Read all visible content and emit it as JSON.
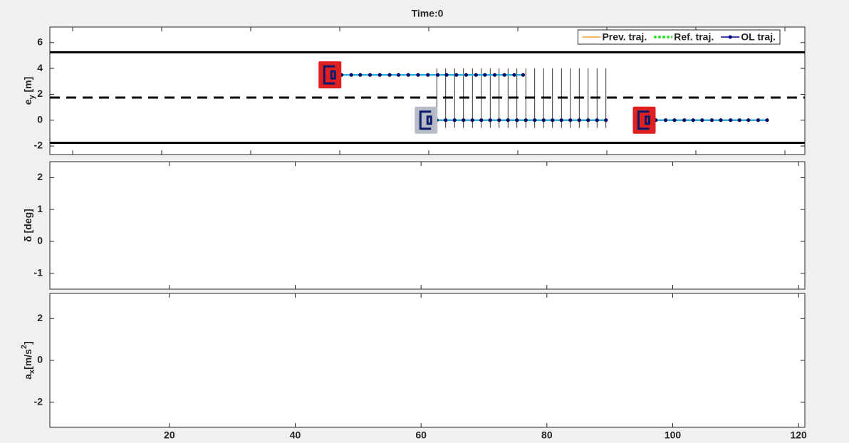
{
  "title": "Time:0",
  "chart_data": [
    {
      "type": "line",
      "ylabel": [
        {
          "text": "e"
        },
        {
          "text": "y",
          "sub": true
        },
        {
          "text": " [m]"
        }
      ],
      "xlim": [
        7.44,
        92.24
      ],
      "xticks": [
        10,
        20,
        30,
        40,
        50,
        60,
        70,
        80,
        90
      ],
      "ylim": [
        -2.66,
        7.2
      ],
      "yticks": [
        -2,
        0,
        2,
        4,
        6
      ],
      "lanes": {
        "solid": [
          5.25,
          -1.75
        ],
        "dashed": [
          1.75
        ]
      },
      "bounds": {
        "x": [
          50.9,
          51.9,
          52.9,
          53.9,
          54.9,
          55.9,
          56.9,
          57.9,
          58.9,
          59.9,
          60.9,
          61.9,
          62.9,
          63.9,
          64.9,
          65.9,
          66.9,
          67.9,
          68.9,
          69.9
        ],
        "ymin": -0.6,
        "ymax": 4.0
      },
      "series": [
        {
          "name": "Prev. traj.",
          "color": "#f0a030",
          "style": "solid",
          "x": [],
          "values": []
        },
        {
          "name": "Ref. traj.",
          "color": "#22dd22",
          "style": "dotted",
          "x": [],
          "values": []
        },
        {
          "name": "OL traj.",
          "color": "#00008b",
          "line_color": "#2ab0d8",
          "style": "solid",
          "marker": true,
          "x": [
            39.1,
            40.2,
            41.3,
            42.3,
            43.4,
            44.5,
            45.6,
            46.6,
            47.7,
            48.8,
            49.9,
            51.0,
            52.0,
            53.1,
            54.2,
            55.3,
            56.3,
            57.4,
            58.5,
            59.6,
            60.6,
            null,
            49.9,
            50.9,
            51.9,
            52.9,
            53.9,
            54.9,
            55.9,
            56.9,
            57.9,
            58.9,
            59.9,
            60.9,
            61.9,
            62.9,
            63.9,
            64.9,
            65.9,
            66.9,
            67.9,
            68.9,
            69.9,
            null,
            74.5,
            75.5,
            76.6,
            77.6,
            78.7,
            79.7,
            80.7,
            81.8,
            82.8,
            83.9,
            84.9,
            85.9,
            87.0,
            88.0
          ],
          "values": [
            3.5,
            3.5,
            3.5,
            3.5,
            3.5,
            3.5,
            3.5,
            3.5,
            3.5,
            3.5,
            3.5,
            3.5,
            3.5,
            3.5,
            3.5,
            3.5,
            3.5,
            3.5,
            3.5,
            3.5,
            3.5,
            null,
            0,
            0,
            0,
            0,
            0,
            0,
            0,
            0,
            0,
            0,
            0,
            0,
            0,
            0,
            0,
            0,
            0,
            0,
            0,
            0,
            0,
            null,
            0,
            0,
            0,
            0,
            0,
            0,
            0,
            0,
            0,
            0,
            0,
            0,
            0,
            0
          ]
        }
      ],
      "vehicles": [
        {
          "x": 38.9,
          "y": 3.5,
          "color": "#e02020"
        },
        {
          "x": 49.7,
          "y": 0,
          "color": "#b8bcc8"
        },
        {
          "x": 74.2,
          "y": 0,
          "color": "#e02020"
        }
      ],
      "legend": "upper right"
    },
    {
      "type": "line",
      "ylabel": [
        {
          "text": "δ [deg]"
        }
      ],
      "xlim": [
        1,
        121
      ],
      "xticks": [
        20,
        40,
        60,
        80,
        100,
        120
      ],
      "ylim": [
        -1.5,
        2.5
      ],
      "yticks": [
        -1,
        0,
        1,
        2
      ],
      "series": []
    },
    {
      "type": "line",
      "ylabel": [
        {
          "text": "a"
        },
        {
          "text": "x",
          "sub": true
        },
        {
          "text": "[m/s"
        },
        {
          "text": "2",
          "sup": true
        },
        {
          "text": "]"
        }
      ],
      "xlim": [
        1,
        121
      ],
      "xticks": [
        20,
        40,
        60,
        80,
        100,
        120
      ],
      "ylim": [
        -3.2,
        3.2
      ],
      "yticks": [
        -2,
        0,
        2
      ],
      "series": []
    }
  ]
}
